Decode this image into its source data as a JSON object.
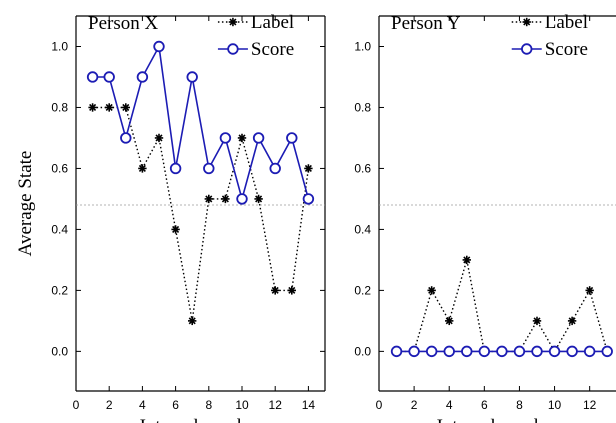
{
  "chart_data": [
    {
      "type": "line",
      "title": "Person X",
      "xlabel": "Interval number",
      "ylabel": "Average State",
      "xlim": [
        0,
        15
      ],
      "ylim": [
        -0.13,
        1.1
      ],
      "xticks": [
        0,
        2,
        4,
        6,
        8,
        10,
        12,
        14
      ],
      "yticks": [
        0.0,
        0.2,
        0.4,
        0.6,
        0.8,
        1.0
      ],
      "reference_line": 0.48,
      "legend_position": "top-right",
      "grid": false,
      "series": [
        {
          "name": "Label",
          "style": "dotted-asterisk",
          "color": "#000000",
          "x": [
            1,
            2,
            3,
            4,
            5,
            6,
            7,
            8,
            9,
            10,
            11,
            12,
            13,
            14
          ],
          "y": [
            0.8,
            0.8,
            0.8,
            0.6,
            0.7,
            0.4,
            0.1,
            0.5,
            0.5,
            0.7,
            0.5,
            0.2,
            0.2,
            0.6
          ]
        },
        {
          "name": "Score",
          "style": "solid-circle",
          "color": "#1c1cb4",
          "x": [
            1,
            2,
            3,
            4,
            5,
            6,
            7,
            8,
            9,
            10,
            11,
            12,
            13,
            14
          ],
          "y": [
            0.9,
            0.9,
            0.7,
            0.9,
            1.0,
            0.6,
            0.9,
            0.6,
            0.7,
            0.5,
            0.7,
            0.6,
            0.7,
            0.5
          ]
        }
      ]
    },
    {
      "type": "line",
      "title": "Person Y",
      "xlabel": "Interval number",
      "ylabel": "",
      "xlim": [
        0,
        13.5
      ],
      "ylim": [
        -0.13,
        1.1
      ],
      "xticks": [
        0,
        2,
        4,
        6,
        8,
        10,
        12
      ],
      "yticks": [
        0.0,
        0.2,
        0.4,
        0.6,
        0.8,
        1.0
      ],
      "reference_line": 0.48,
      "legend_position": "top-right",
      "grid": false,
      "series": [
        {
          "name": "Label",
          "style": "dotted-asterisk",
          "color": "#000000",
          "x": [
            1,
            2,
            3,
            4,
            5,
            6,
            7,
            8,
            9,
            10,
            11,
            12,
            13
          ],
          "y": [
            0.0,
            0.0,
            0.2,
            0.1,
            0.3,
            0.0,
            0.0,
            0.0,
            0.1,
            0.0,
            0.1,
            0.2,
            0.0
          ]
        },
        {
          "name": "Score",
          "style": "solid-circle",
          "color": "#1c1cb4",
          "x": [
            1,
            2,
            3,
            4,
            5,
            6,
            7,
            8,
            9,
            10,
            11,
            12,
            13
          ],
          "y": [
            0.0,
            0.0,
            0.0,
            0.0,
            0.0,
            0.0,
            0.0,
            0.0,
            0.0,
            0.0,
            0.0,
            0.0,
            0.0
          ]
        }
      ]
    }
  ]
}
